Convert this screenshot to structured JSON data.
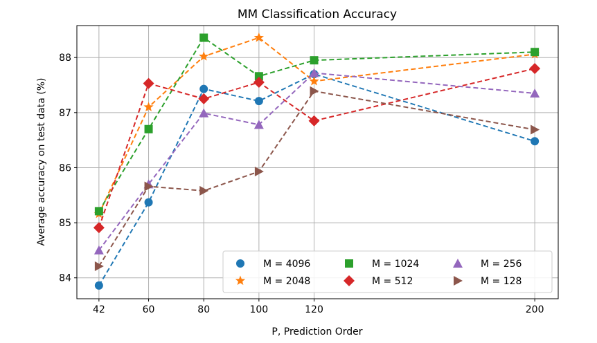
{
  "chart_data": {
    "type": "line",
    "title": "MM Classification Accuracy",
    "xlabel": "P, Prediction Order",
    "ylabel": "Average accuracy on test data (%)",
    "x": [
      42,
      60,
      80,
      100,
      120,
      200
    ],
    "xticks": [
      42,
      60,
      80,
      100,
      120,
      200
    ],
    "yticks": [
      84,
      85,
      86,
      87,
      88
    ],
    "xlim": [
      34,
      208.5
    ],
    "ylim": [
      83.62,
      88.58
    ],
    "grid": true,
    "legend_position": "lower-right",
    "legend_columns": 3,
    "series": [
      {
        "name": "M = 4096",
        "color": "#1f77b4",
        "marker": "circle",
        "values": [
          83.86,
          85.37,
          87.43,
          87.21,
          87.7,
          86.48
        ]
      },
      {
        "name": "M = 2048",
        "color": "#ff7f0e",
        "marker": "star",
        "values": [
          85.16,
          87.1,
          88.02,
          88.36,
          87.57,
          88.06
        ]
      },
      {
        "name": "M = 1024",
        "color": "#2ca02c",
        "marker": "square",
        "values": [
          85.21,
          86.7,
          88.36,
          87.66,
          87.95,
          88.1
        ]
      },
      {
        "name": "M = 512",
        "color": "#d62728",
        "marker": "diamond",
        "values": [
          84.91,
          87.53,
          87.25,
          87.55,
          86.85,
          87.8
        ]
      },
      {
        "name": "M = 256",
        "color": "#9467bd",
        "marker": "triangle-up",
        "values": [
          84.5,
          85.7,
          86.99,
          86.78,
          87.72,
          87.35
        ]
      },
      {
        "name": "M = 128",
        "color": "#8c564b",
        "marker": "triangle-right",
        "values": [
          84.21,
          85.66,
          85.58,
          85.93,
          87.39,
          86.69
        ]
      }
    ]
  }
}
